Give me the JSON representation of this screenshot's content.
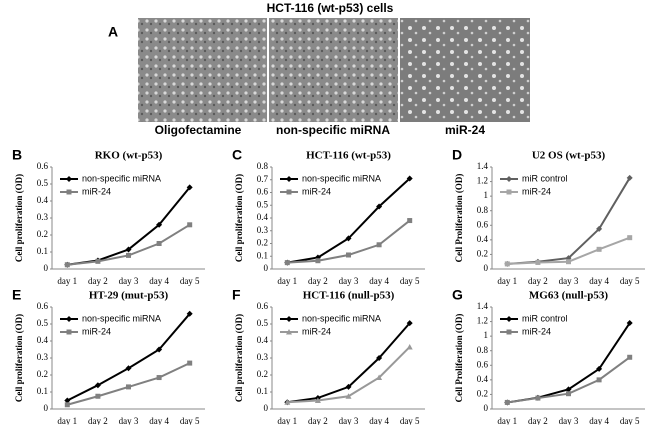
{
  "figure": {
    "title": "HCT-116 (wt-p53) cells",
    "panel": "A",
    "captions": [
      "Oligofectamine",
      "non-specific miRNA",
      "miR-24"
    ]
  },
  "chart_data": [
    {
      "type": "line",
      "panel": "B",
      "title": "RKO (wt-p53)",
      "y_label": "Cell proliferation (OD)",
      "categories": [
        "day 1",
        "day 2",
        "day 3",
        "day 4",
        "day 5"
      ],
      "ylim": [
        0,
        0.6
      ],
      "yticks": [
        0,
        0.1,
        0.2,
        0.3,
        0.4,
        0.5,
        0.6
      ],
      "legend": "upper-left",
      "series": [
        {
          "name": "non-specific miRNA",
          "color": "#000000",
          "marker": "diamond",
          "values": [
            0.025,
            0.05,
            0.115,
            0.26,
            0.48
          ]
        },
        {
          "name": "miR-24",
          "color": "#808080",
          "marker": "square",
          "values": [
            0.025,
            0.045,
            0.08,
            0.15,
            0.26
          ]
        }
      ]
    },
    {
      "type": "line",
      "panel": "C",
      "title": "HCT-116 (wt-p53)",
      "y_label": "Cell proliferation (OD)",
      "categories": [
        "day 1",
        "day 2",
        "day 3",
        "day 4",
        "day 5"
      ],
      "ylim": [
        0,
        0.8
      ],
      "yticks": [
        0,
        0.1,
        0.2,
        0.3,
        0.4,
        0.5,
        0.6,
        0.7,
        0.8
      ],
      "legend": "upper-left",
      "series": [
        {
          "name": "non-specific miRNA",
          "color": "#000000",
          "marker": "diamond",
          "values": [
            0.05,
            0.09,
            0.24,
            0.49,
            0.71
          ]
        },
        {
          "name": "miR-24",
          "color": "#808080",
          "marker": "square",
          "values": [
            0.05,
            0.065,
            0.11,
            0.19,
            0.38
          ]
        }
      ]
    },
    {
      "type": "line",
      "panel": "D",
      "title": "U2 OS (wt-p53)",
      "y_label": "Cell Proliferation (OD)",
      "categories": [
        "day 1",
        "day 2",
        "day 3",
        "day 4",
        "day 5"
      ],
      "ylim": [
        0,
        1.4
      ],
      "yticks": [
        0,
        0.2,
        0.4,
        0.6,
        0.8,
        1,
        1.2,
        1.4
      ],
      "legend": "upper-left",
      "series": [
        {
          "name": "miR control",
          "color": "#606060",
          "marker": "diamond",
          "values": [
            0.07,
            0.1,
            0.15,
            0.55,
            1.25
          ]
        },
        {
          "name": "miR-24",
          "color": "#a6a6a6",
          "marker": "square",
          "values": [
            0.07,
            0.09,
            0.1,
            0.27,
            0.43
          ]
        }
      ]
    },
    {
      "type": "line",
      "panel": "E",
      "title": "HT-29 (mut-p53)",
      "y_label": "Cell proliferation (OD)",
      "categories": [
        "day 1",
        "day 2",
        "day 3",
        "day 4",
        "day 5"
      ],
      "ylim": [
        0,
        0.6
      ],
      "yticks": [
        0,
        0.1,
        0.2,
        0.3,
        0.4,
        0.5,
        0.6
      ],
      "legend": "upper-left",
      "series": [
        {
          "name": "non-specific miRNA",
          "color": "#000000",
          "marker": "diamond",
          "values": [
            0.05,
            0.14,
            0.24,
            0.35,
            0.56
          ]
        },
        {
          "name": "miR-24",
          "color": "#808080",
          "marker": "square",
          "values": [
            0.025,
            0.075,
            0.13,
            0.185,
            0.27
          ]
        }
      ]
    },
    {
      "type": "line",
      "panel": "F",
      "title": "HCT-116 (null-p53)",
      "y_label": "Cell proliferation (OD)",
      "categories": [
        "day 1",
        "day 2",
        "day 3",
        "day 4",
        "day 5"
      ],
      "ylim": [
        0,
        0.6
      ],
      "yticks": [
        0,
        0.1,
        0.2,
        0.3,
        0.4,
        0.5,
        0.6
      ],
      "legend": "upper-left",
      "series": [
        {
          "name": "non-specific miRNA",
          "color": "#000000",
          "marker": "diamond",
          "values": [
            0.04,
            0.065,
            0.13,
            0.3,
            0.505
          ]
        },
        {
          "name": "miR-24",
          "color": "#999999",
          "marker": "triangle",
          "values": [
            0.04,
            0.05,
            0.075,
            0.185,
            0.365
          ]
        }
      ]
    },
    {
      "type": "line",
      "panel": "G",
      "title": "MG63 (null-p53)",
      "y_label": "Cell Proliferation (OD)",
      "categories": [
        "day 1",
        "day 2",
        "day 3",
        "day 4",
        "day 5"
      ],
      "ylim": [
        0,
        1.4
      ],
      "yticks": [
        0,
        0.2,
        0.4,
        0.6,
        0.8,
        1,
        1.2,
        1.4
      ],
      "legend": "upper-left",
      "series": [
        {
          "name": "miR control",
          "color": "#000000",
          "marker": "diamond",
          "values": [
            0.09,
            0.155,
            0.27,
            0.55,
            1.18
          ]
        },
        {
          "name": "miR-24",
          "color": "#808080",
          "marker": "square",
          "values": [
            0.09,
            0.15,
            0.21,
            0.4,
            0.71
          ]
        }
      ]
    }
  ]
}
